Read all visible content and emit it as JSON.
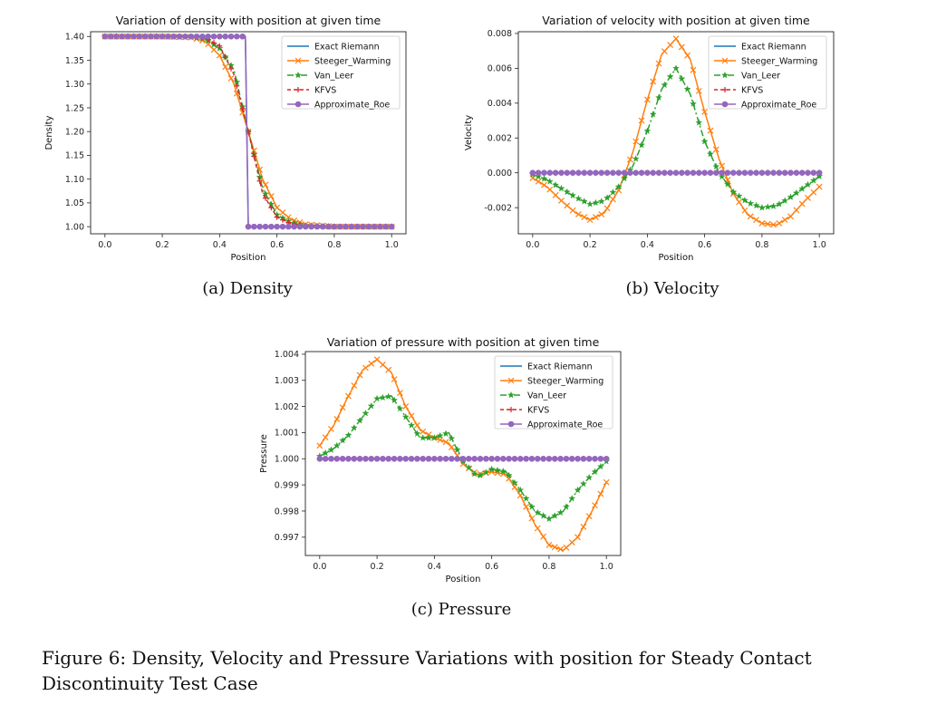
{
  "figure_caption": "Figure 6: Density, Velocity and Pressure Variations with position for Steady Contact Discontinuity Test Case",
  "subcaptions": [
    "(a) Density",
    "(b) Velocity",
    "(c) Pressure"
  ],
  "series_colors": {
    "Exact Riemann": "#1f77b4",
    "Steeger_Warming": "#ff7f0e",
    "Van_Leer": "#2ca02c",
    "KFVS": "#d62728",
    "Approximate_Roe": "#9467bd"
  },
  "chart_data": [
    {
      "type": "line",
      "title": "Variation of density with position at given time",
      "xlabel": "Position",
      "ylabel": "Density",
      "xlim": [
        -0.05,
        1.05
      ],
      "ylim": [
        0.985,
        1.41
      ],
      "xticks": [
        "0.0",
        "0.2",
        "0.4",
        "0.6",
        "0.8",
        "1.0"
      ],
      "yticks": [
        "1.00",
        "1.05",
        "1.10",
        "1.15",
        "1.20",
        "1.25",
        "1.30",
        "1.35",
        "1.40"
      ],
      "legend": "top-right",
      "series": [
        {
          "name": "Exact Riemann",
          "x": [
            0.0,
            0.49,
            0.5,
            1.0
          ],
          "y": [
            1.4,
            1.4,
            1.0,
            1.0
          ]
        },
        {
          "name": "Steeger_Warming",
          "x": [
            0.0,
            0.1,
            0.2,
            0.3,
            0.35,
            0.4,
            0.45,
            0.5,
            0.55,
            0.6,
            0.65,
            0.7,
            0.8,
            0.9,
            1.0
          ],
          "y": [
            1.4,
            1.4,
            1.4,
            1.398,
            1.39,
            1.36,
            1.3,
            1.2,
            1.1,
            1.04,
            1.015,
            1.005,
            1.0,
            1.0,
            1.0
          ]
        },
        {
          "name": "Van_Leer",
          "x": [
            0.0,
            0.1,
            0.2,
            0.3,
            0.35,
            0.4,
            0.45,
            0.5,
            0.55,
            0.6,
            0.65,
            0.7,
            0.8,
            0.9,
            1.0
          ],
          "y": [
            1.4,
            1.4,
            1.4,
            1.399,
            1.395,
            1.375,
            1.33,
            1.2,
            1.08,
            1.025,
            1.008,
            1.002,
            1.0,
            1.0,
            1.0
          ]
        },
        {
          "name": "KFVS",
          "x": [
            0.0,
            0.1,
            0.2,
            0.3,
            0.35,
            0.4,
            0.45,
            0.5,
            0.55,
            0.6,
            0.65,
            0.7,
            0.8,
            0.9,
            1.0
          ],
          "y": [
            1.4,
            1.4,
            1.4,
            1.4,
            1.397,
            1.38,
            1.32,
            1.2,
            1.07,
            1.02,
            1.006,
            1.001,
            1.0,
            1.0,
            1.0
          ]
        },
        {
          "name": "Approximate_Roe",
          "x": [
            0.0,
            0.49,
            0.5,
            1.0
          ],
          "y": [
            1.4,
            1.4,
            1.0,
            1.0
          ]
        }
      ]
    },
    {
      "type": "line",
      "title": "Variation of velocity with position at given time",
      "xlabel": "Position",
      "ylabel": "Velocity",
      "xlim": [
        -0.05,
        1.05
      ],
      "ylim": [
        -0.0035,
        0.0081
      ],
      "xticks": [
        "0.0",
        "0.2",
        "0.4",
        "0.6",
        "0.8",
        "1.0"
      ],
      "yticks": [
        "-0.002",
        "0.000",
        "0.002",
        "0.004",
        "0.006",
        "0.008"
      ],
      "legend": "top-right",
      "series": [
        {
          "name": "Exact Riemann",
          "x": [
            0.0,
            1.0
          ],
          "y": [
            0.0,
            0.0
          ]
        },
        {
          "name": "Steeger_Warming",
          "x": [
            0.0,
            0.05,
            0.1,
            0.15,
            0.2,
            0.25,
            0.3,
            0.35,
            0.4,
            0.45,
            0.5,
            0.55,
            0.6,
            0.65,
            0.7,
            0.75,
            0.8,
            0.85,
            0.9,
            0.95,
            1.0
          ],
          "y": [
            -0.0003,
            -0.0008,
            -0.0016,
            -0.0023,
            -0.0027,
            -0.0023,
            -0.001,
            0.0012,
            0.0042,
            0.0068,
            0.0077,
            0.0065,
            0.0035,
            0.0008,
            -0.0012,
            -0.0024,
            -0.0029,
            -0.003,
            -0.0025,
            -0.0016,
            -0.0008
          ]
        },
        {
          "name": "Van_Leer",
          "x": [
            0.0,
            0.05,
            0.1,
            0.15,
            0.2,
            0.25,
            0.3,
            0.35,
            0.4,
            0.45,
            0.5,
            0.55,
            0.6,
            0.65,
            0.7,
            0.75,
            0.8,
            0.85,
            0.9,
            0.95,
            1.0
          ],
          "y": [
            -0.0001,
            -0.0004,
            -0.0009,
            -0.0014,
            -0.0018,
            -0.0016,
            -0.0008,
            0.0004,
            0.0024,
            0.0048,
            0.006,
            0.0045,
            0.0018,
            0.0,
            -0.0011,
            -0.0017,
            -0.002,
            -0.0019,
            -0.0014,
            -0.0008,
            -0.0002
          ]
        },
        {
          "name": "KFVS",
          "x": [
            0.0,
            1.0
          ],
          "y": [
            0.0,
            0.0
          ]
        },
        {
          "name": "Approximate_Roe",
          "x": [
            0.0,
            1.0
          ],
          "y": [
            0.0,
            0.0
          ]
        }
      ]
    },
    {
      "type": "line",
      "title": "Variation of pressure with position at given time",
      "xlabel": "Position",
      "ylabel": "Pressure",
      "xlim": [
        -0.05,
        1.05
      ],
      "ylim": [
        0.9963,
        1.0041
      ],
      "xticks": [
        "0.0",
        "0.2",
        "0.4",
        "0.6",
        "0.8",
        "1.0"
      ],
      "yticks": [
        "0.997",
        "0.998",
        "0.999",
        "1.000",
        "1.001",
        "1.002",
        "1.003",
        "1.004"
      ],
      "legend": "top-right",
      "series": [
        {
          "name": "Exact Riemann",
          "x": [
            0.0,
            1.0
          ],
          "y": [
            1.0,
            1.0
          ]
        },
        {
          "name": "Steeger_Warming",
          "x": [
            0.0,
            0.05,
            0.1,
            0.15,
            0.2,
            0.25,
            0.3,
            0.35,
            0.4,
            0.45,
            0.5,
            0.55,
            0.6,
            0.65,
            0.7,
            0.75,
            0.8,
            0.85,
            0.9,
            0.95,
            1.0
          ],
          "y": [
            1.0005,
            1.0013,
            1.0024,
            1.0034,
            1.0038,
            1.0033,
            1.002,
            1.0011,
            1.0008,
            1.0006,
            0.9998,
            0.9994,
            0.9995,
            0.9994,
            0.9986,
            0.9975,
            0.9967,
            0.9965,
            0.997,
            0.998,
            0.9991
          ]
        },
        {
          "name": "Van_Leer",
          "x": [
            0.0,
            0.05,
            0.1,
            0.15,
            0.2,
            0.25,
            0.3,
            0.35,
            0.4,
            0.45,
            0.5,
            0.55,
            0.6,
            0.65,
            0.7,
            0.75,
            0.8,
            0.85,
            0.9,
            0.95,
            1.0
          ],
          "y": [
            1.0001,
            1.0004,
            1.0009,
            1.0016,
            1.0023,
            1.0024,
            1.0016,
            1.0008,
            1.0008,
            1.001,
            0.9999,
            0.9993,
            0.9996,
            0.9995,
            0.9988,
            0.998,
            0.9977,
            0.998,
            0.9988,
            0.9994,
            0.9999
          ]
        },
        {
          "name": "KFVS",
          "x": [
            0.0,
            1.0
          ],
          "y": [
            1.0,
            1.0
          ]
        },
        {
          "name": "Approximate_Roe",
          "x": [
            0.0,
            1.0
          ],
          "y": [
            1.0,
            1.0
          ]
        }
      ]
    }
  ]
}
